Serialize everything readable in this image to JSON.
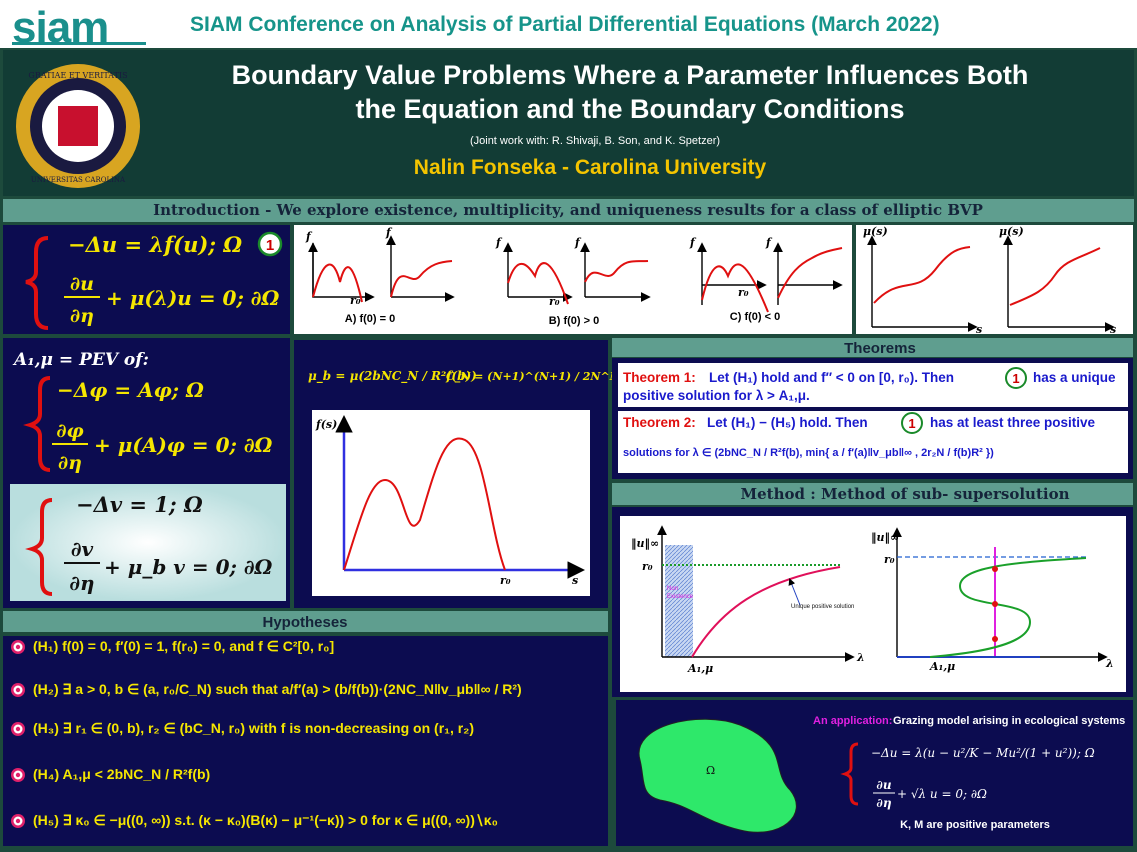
{
  "header": {
    "logo": "siam",
    "conference": "SIAM Conference on Analysis of Partial Differential Equations (March 2022)"
  },
  "banner": {
    "title_lines": [
      "Boundary Value Problems Where a Parameter Influences Both",
      "the Equation and the Boundary Conditions"
    ],
    "collaborators": "(Joint work with: R. Shivaji, B. Son, and K. Spetzer)",
    "author": "Nalin Fonseka - Carolina University",
    "seal_top": "GRATIAE ET VERITATIS",
    "seal_bottom": "UNIVERSITAS CAROLINA"
  },
  "intro": "Introduction - We explore existence, multiplicity, and uniqueness results for a class of elliptic BVP",
  "problem": {
    "equation": "−Δu = λf(u); Ω",
    "num": "∂u",
    "den": "∂η",
    "boundary": "+ μ(λ)u = 0; ∂Ω",
    "tag": "1"
  },
  "sketches": {
    "f_label": "f",
    "r0": "r₀",
    "cases": [
      "A) f(0) = 0",
      "B) f(0) > 0",
      "C) f(0) < 0"
    ],
    "mu_label": "μ(s)",
    "s_label": "s"
  },
  "pev": {
    "label": "A₁,μ = PEV of:",
    "equation": "−Δφ = Aφ; Ω",
    "num": "∂φ",
    "den": "∂η",
    "boundary": "+ μ(A)φ = 0; ∂Ω"
  },
  "torsion": {
    "equation": "−Δv = 1; Ω",
    "num": "∂v",
    "den": "∂η",
    "boundary": "+ μ_b v = 0; ∂Ω"
  },
  "mu_b": {
    "formula": "μ_b = μ(2bNC_N / R²f(b))",
    "cn": "C_N = (N+1)^(N+1) / 2N^N  (> 0)",
    "f_label": "f(s)",
    "r0": "r₀",
    "s_label": "s"
  },
  "theorems": {
    "heading": "Theorems",
    "tag": "1",
    "t1_label": "Theorem 1:",
    "t1_text": [
      "Let (H₁) hold and f″ < 0 on [0, r₀). Then",
      "has a unique",
      "positive solution for  λ > A₁,μ."
    ],
    "t2_label": "Theorem 2:",
    "t2_text": [
      "Let (H₁) − (H₅) hold. Then",
      "has at least three positive",
      "solutions for  λ ∈ (2bNC_N / R²f(b), min{ a / f′(a)‖v_μb‖∞ , 2r₂N / f(b)R² })"
    ]
  },
  "method": {
    "heading": "Method : Method of sub- supersolution",
    "norm": "‖u‖∞",
    "r0": "r₀",
    "lambda": "λ",
    "a1mu": "A₁,μ",
    "nonexistence": [
      "Non",
      "Existence"
    ],
    "unique": "Unique positive solution"
  },
  "application": {
    "label": "An application:",
    "text": "Grazing model arising in ecological systems",
    "equation": "−Δu = λ(u − u²/K − Mu²/(1 + u²)); Ω",
    "num": "∂u",
    "den": "∂η",
    "boundary": "+ √λ u = 0; ∂Ω",
    "note": "K, M are positive parameters",
    "domain": "Ω"
  },
  "hypotheses": {
    "heading": "Hypotheses",
    "items": [
      "(H₁) f(0) = 0, f′(0) = 1, f(r₀) = 0, and f ∈ C²[0, r₀]",
      "(H₂) ∃ a > 0, b ∈ (a, r₀/C_N) such that a/f′(a) > (b/f(b))·(2NC_N‖v_μb‖∞ / R²)",
      "(H₃) ∃ r₁ ∈ (0, b), r₂ ∈ (bC_N, r₀) with f is non-decreasing on (r₁, r₂)",
      "(H₄) A₁,μ < 2bNC_N / R²f(b)",
      "(H₅) ∃ κ₀ ∈ −μ((0, ∞)) s.t. (κ − κ₀)(B(κ) − μ⁻¹(−κ)) > 0 for κ ∈ μ((0, ∞))∖κ₀"
    ]
  }
}
